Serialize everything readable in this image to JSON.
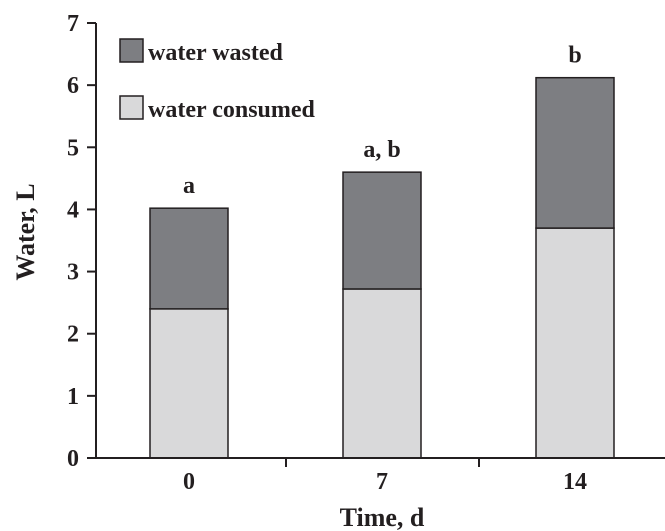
{
  "chart_data": {
    "type": "bar",
    "stacked": true,
    "categories": [
      "0",
      "7",
      "14"
    ],
    "series": [
      {
        "name": "water consumed",
        "color": "#d9d9da",
        "values": [
          2.4,
          2.72,
          3.7
        ]
      },
      {
        "name": "water wasted",
        "color": "#7d7e82",
        "values": [
          1.62,
          1.88,
          2.42
        ]
      }
    ],
    "annotations": [
      "a",
      "a, b",
      "b"
    ],
    "xlabel": "Time, d",
    "ylabel": "Water, L",
    "ylim": [
      0,
      7
    ],
    "yticks": [
      "0",
      "1",
      "2",
      "3",
      "4",
      "5",
      "6",
      "7"
    ],
    "legend": {
      "placement": "top-left",
      "order": [
        "water wasted",
        "water consumed"
      ]
    },
    "grid": false
  }
}
